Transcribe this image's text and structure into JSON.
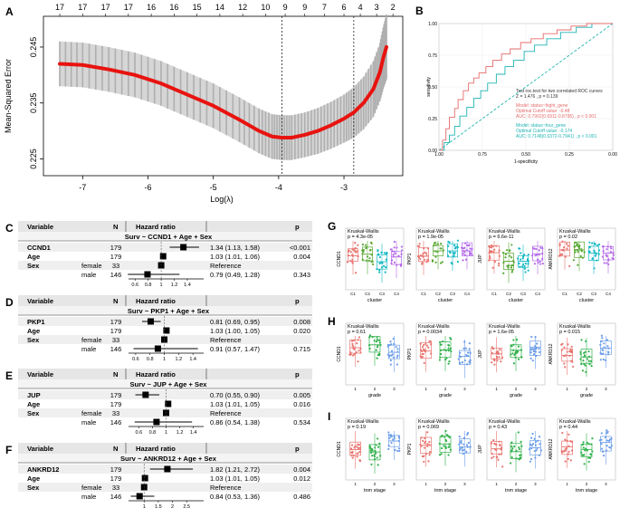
{
  "panel_letters": {
    "A": "A",
    "B": "B",
    "C": "C",
    "D": "D",
    "E": "E",
    "F": "F",
    "G": "G",
    "H": "H",
    "I": "I"
  },
  "chart_data": [
    {
      "id": "A",
      "type": "line",
      "xlabel": "Log(λ)",
      "ylabel": "Mean-Squared Error",
      "xlim": [
        -7.6,
        -2.1
      ],
      "ylim": [
        0.222,
        0.2505
      ],
      "x_ticks": [
        -7,
        -6,
        -5,
        -4,
        -3
      ],
      "x_tick_labels": [
        "-7",
        "-6",
        "-5",
        "-4",
        "-3"
      ],
      "y_ticks": [
        0.225,
        0.235,
        0.245
      ],
      "y_tick_labels": [
        "0.225",
        "0.235",
        "0.245"
      ],
      "top_axis_labels": [
        "17",
        "17",
        "17",
        "17",
        "16",
        "16",
        "15",
        "14",
        "12",
        "10",
        "9",
        "9",
        "7",
        "6",
        "4",
        "3",
        "2"
      ],
      "top_axis_positions": [
        -7.35,
        -7.0,
        -6.65,
        -6.3,
        -5.95,
        -5.6,
        -5.25,
        -4.9,
        -4.55,
        -4.2,
        -3.9,
        -3.6,
        -3.3,
        -3.0,
        -2.75,
        -2.5,
        -2.25
      ],
      "vlines": [
        -3.95,
        -2.85
      ],
      "series": [
        {
          "name": "mse",
          "x": [
            -7.35,
            -7.0,
            -6.6,
            -6.2,
            -5.8,
            -5.4,
            -5.0,
            -4.6,
            -4.3,
            -4.1,
            -3.95,
            -3.8,
            -3.6,
            -3.4,
            -3.2,
            -3.0,
            -2.85,
            -2.7,
            -2.55,
            -2.45,
            -2.4,
            -2.35
          ],
          "y": [
            0.242,
            0.2418,
            0.241,
            0.24,
            0.2385,
            0.2365,
            0.2345,
            0.232,
            0.23,
            0.229,
            0.2288,
            0.2288,
            0.2293,
            0.23,
            0.231,
            0.2322,
            0.2333,
            0.235,
            0.2375,
            0.2405,
            0.243,
            0.245
          ],
          "err": [
            0.004,
            0.004,
            0.004,
            0.004,
            0.004,
            0.004,
            0.004,
            0.004,
            0.004,
            0.004,
            0.004,
            0.004,
            0.004,
            0.0041,
            0.0042,
            0.0043,
            0.0045,
            0.0047,
            0.005,
            0.0052,
            0.0055,
            0.0058
          ]
        }
      ]
    },
    {
      "id": "B",
      "type": "line",
      "xlabel": "1-specificity",
      "ylabel": "sensitivity",
      "xlim": [
        1.0,
        0.0
      ],
      "ylim": [
        0.0,
        1.0
      ],
      "x_tick_labels": [
        "1.00",
        "0.75",
        "0.50",
        "0.25",
        "0.00"
      ],
      "y_tick_labels": [
        "0.00",
        "0.25",
        "0.50",
        "0.75",
        "1.00"
      ],
      "annotations": [
        "Test roc.test for two correlated ROC curves",
        "Z = 1.476 , p = 0.139",
        "Model: status~hight_gene",
        "Optimal Cutoff value: -0.48",
        "AUC: 0.7902(0.6911-0.8795) , p < 0.001",
        "Model: status~four_gene",
        "Optimal Cutoff value: -0.174",
        "AUC: 0.7148(0.6372-0.7941) , p < 0.001"
      ],
      "colors": {
        "eight": "#e66b6b",
        "four": "#1fb3b3",
        "diag": "#1fb3b3"
      }
    },
    {
      "id": "G",
      "type": "box",
      "xlabel": "cluster",
      "categories": [
        "C1",
        "C2",
        "C3",
        "C4"
      ],
      "plots": [
        {
          "gene": "CCND1",
          "test": "Kruskal-Wallis",
          "p": "p = 4.3e-05"
        },
        {
          "gene": "PKP1",
          "test": "Kruskal-Wallis",
          "p": "p = 1.9e-05"
        },
        {
          "gene": "JUP",
          "test": "Kruskal-Wallis",
          "p": "p = 6.6e-11"
        },
        {
          "gene": "ANKRD12",
          "test": "Kruskal-Wallis",
          "p": "p = 0.02"
        }
      ],
      "colors": [
        "#e8746f",
        "#58a832",
        "#17b8c4",
        "#b46ae8"
      ]
    },
    {
      "id": "H",
      "type": "box",
      "xlabel": "grade",
      "categories": [
        "1",
        "2",
        "3"
      ],
      "plots": [
        {
          "gene": "CCND1",
          "test": "Kruskal-Wallis",
          "p": "p = 0.61"
        },
        {
          "gene": "PKP1",
          "test": "Kruskal-Wallis",
          "p": "p = 0.0034"
        },
        {
          "gene": "JUP",
          "test": "Kruskal-Wallis",
          "p": "p = 1.6e-05"
        },
        {
          "gene": "ANKRD12",
          "test": "Kruskal-Wallis",
          "p": "p = 0.015"
        }
      ],
      "colors": [
        "#e8746f",
        "#2fb04a",
        "#6b9ce8"
      ]
    },
    {
      "id": "I",
      "type": "box",
      "xlabel": "tnm stage",
      "categories": [
        "1",
        "2",
        "3"
      ],
      "plots": [
        {
          "gene": "CCND1",
          "test": "Kruskal-Wallis",
          "p": "p = 0.19"
        },
        {
          "gene": "PKP1",
          "test": "Kruskal-Wallis",
          "p": "p = 0.069"
        },
        {
          "gene": "JUP",
          "test": "Kruskal-Wallis",
          "p": "p = 0.43"
        },
        {
          "gene": "ANKRD12",
          "test": "Kruskal-Wallis",
          "p": "p = 0.44"
        }
      ],
      "colors": [
        "#e8746f",
        "#2fb04a",
        "#6b9ce8"
      ]
    }
  ],
  "forest_plots": [
    {
      "id": "C",
      "headers": {
        "variable": "Variable",
        "n": "N",
        "hr": "Hazard ratio",
        "p": "p"
      },
      "formula": "Surv ~ CCND1 + Age + Sex",
      "ticks": [
        0.6,
        0.8,
        1,
        1.2,
        1.4
      ],
      "tick_labels": [
        "0.6",
        "0.8",
        "1",
        "1.2",
        "1.4"
      ],
      "xlim": [
        0.5,
        1.65
      ],
      "rows": [
        {
          "var": "CCND1",
          "level": "",
          "n": "179",
          "hr": 1.34,
          "lo": 1.13,
          "hi": 1.58,
          "text": "1.34 (1.13, 1.58)",
          "p": "<0.001"
        },
        {
          "var": "Age",
          "level": "",
          "n": "179",
          "hr": 1.03,
          "lo": 1.01,
          "hi": 1.06,
          "text": "1.03 (1.01, 1.06)",
          "p": "0.004"
        },
        {
          "var": "Sex",
          "level": "female",
          "n": "33",
          "hr": null,
          "text": "Reference",
          "p": ""
        },
        {
          "var": "",
          "level": "male",
          "n": "146",
          "hr": 0.79,
          "lo": 0.49,
          "hi": 1.28,
          "text": "0.79 (0.49, 1.28)",
          "p": "0.343"
        }
      ]
    },
    {
      "id": "D",
      "headers": {
        "variable": "Variable",
        "n": "N",
        "hr": "Hazard ratio",
        "p": "p"
      },
      "formula": "Surv ~ PKP1 + Age + Sex",
      "ticks": [
        0.6,
        0.8,
        1,
        1.2,
        1.4
      ],
      "tick_labels": [
        "0.6",
        "0.8",
        "1",
        "1.2",
        "1.4"
      ],
      "xlim": [
        0.5,
        1.55
      ],
      "rows": [
        {
          "var": "PKP1",
          "level": "",
          "n": "179",
          "hr": 0.81,
          "lo": 0.69,
          "hi": 0.95,
          "text": "0.81 (0.69, 0.95)",
          "p": "0.008"
        },
        {
          "var": "Age",
          "level": "",
          "n": "179",
          "hr": 1.03,
          "lo": 1.0,
          "hi": 1.05,
          "text": "1.03 (1.00, 1.05)",
          "p": "0.020"
        },
        {
          "var": "Sex",
          "level": "female",
          "n": "33",
          "hr": null,
          "text": "Reference",
          "p": ""
        },
        {
          "var": "",
          "level": "male",
          "n": "146",
          "hr": 0.91,
          "lo": 0.57,
          "hi": 1.47,
          "text": "0.91 (0.57, 1.47)",
          "p": "0.715"
        }
      ]
    },
    {
      "id": "E",
      "headers": {
        "variable": "Variable",
        "n": "N",
        "hr": "Hazard ratio",
        "p": "p"
      },
      "formula": "Surv ~ JUP + Age + Sex",
      "ticks": [
        0.6,
        0.8,
        1,
        1.2,
        1.4
      ],
      "tick_labels": [
        "0.6",
        "0.8",
        "1",
        "1.2",
        "1.4"
      ],
      "xlim": [
        0.45,
        1.55
      ],
      "rows": [
        {
          "var": "JUP",
          "level": "",
          "n": "179",
          "hr": 0.7,
          "lo": 0.55,
          "hi": 0.9,
          "text": "0.70 (0.55, 0.90)",
          "p": "0.005"
        },
        {
          "var": "Age",
          "level": "",
          "n": "179",
          "hr": 1.03,
          "lo": 1.01,
          "hi": 1.05,
          "text": "1.03 (1.01, 1.05)",
          "p": "0.016"
        },
        {
          "var": "Sex",
          "level": "female",
          "n": "33",
          "hr": null,
          "text": "Reference",
          "p": ""
        },
        {
          "var": "",
          "level": "male",
          "n": "146",
          "hr": 0.86,
          "lo": 0.54,
          "hi": 1.38,
          "text": "0.86 (0.54, 1.38)",
          "p": "0.534"
        }
      ]
    },
    {
      "id": "F",
      "headers": {
        "variable": "Variable",
        "n": "N",
        "hr": "Hazard ratio",
        "p": "p"
      },
      "formula": "Surv ~ ANKRD12 + Age + Sex",
      "ticks": [
        1,
        1.5,
        2,
        2.5
      ],
      "tick_labels": [
        "1",
        "1.5",
        "2",
        "2.5"
      ],
      "xlim": [
        0.45,
        3.1
      ],
      "rows": [
        {
          "var": "ANKRD12",
          "level": "",
          "n": "179",
          "hr": 1.82,
          "lo": 1.21,
          "hi": 2.72,
          "text": "1.82 (1.21, 2.72)",
          "p": "0.004"
        },
        {
          "var": "Age",
          "level": "",
          "n": "179",
          "hr": 1.03,
          "lo": 1.01,
          "hi": 1.05,
          "text": "1.03 (1.01, 1.05)",
          "p": "0.012"
        },
        {
          "var": "Sex",
          "level": "female",
          "n": "33",
          "hr": null,
          "text": "Reference",
          "p": ""
        },
        {
          "var": "",
          "level": "male",
          "n": "146",
          "hr": 0.84,
          "lo": 0.53,
          "hi": 1.36,
          "text": "0.84 (0.53, 1.36)",
          "p": "0.486"
        }
      ]
    }
  ]
}
